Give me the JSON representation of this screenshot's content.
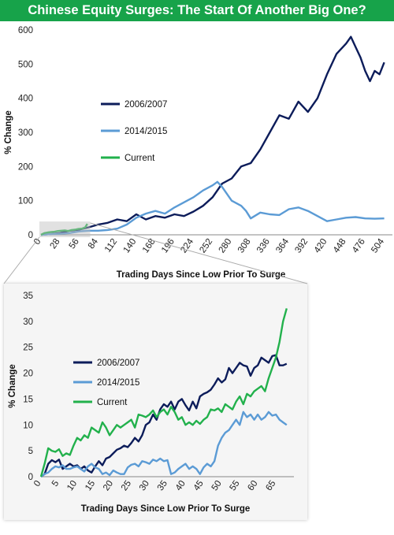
{
  "title": "Chinese Equity Surges: The Start Of Another Big One?",
  "colors": {
    "title_bar": "#17a34a",
    "series_2006": "#0c1c5a",
    "series_2014": "#5b9bd5",
    "series_current": "#22b14c",
    "inset_bg": "#f5f5f5"
  },
  "chart_data": [
    {
      "type": "line",
      "ylabel": "% Change",
      "xlabel": "Trading Days Since Low Prior To Surge",
      "xlim": [
        0,
        516
      ],
      "ylim": [
        0,
        600
      ],
      "x_ticks": [
        0,
        28,
        56,
        84,
        112,
        140,
        168,
        196,
        224,
        252,
        280,
        308,
        336,
        364,
        392,
        420,
        448,
        476,
        504
      ],
      "y_ticks": [
        0,
        100,
        200,
        300,
        400,
        500,
        600
      ],
      "legend": [
        "2006/2007",
        "2014/2015",
        "Current"
      ],
      "legend_position": "center-left",
      "series": [
        {
          "name": "2006/2007",
          "x": [
            0,
            14,
            28,
            42,
            56,
            70,
            84,
            98,
            112,
            126,
            140,
            154,
            168,
            182,
            196,
            210,
            224,
            238,
            252,
            266,
            280,
            294,
            308,
            322,
            336,
            350,
            364,
            378,
            392,
            406,
            420,
            434,
            448,
            455,
            462,
            469,
            476,
            483,
            490,
            497,
            504
          ],
          "y": [
            0,
            2,
            5,
            12,
            15,
            22,
            30,
            35,
            45,
            40,
            60,
            45,
            55,
            50,
            60,
            55,
            68,
            85,
            110,
            150,
            165,
            200,
            210,
            250,
            300,
            350,
            340,
            390,
            360,
            400,
            470,
            530,
            560,
            580,
            550,
            520,
            480,
            450,
            480,
            470,
            505
          ]
        },
        {
          "name": "2014/2015",
          "x": [
            0,
            14,
            28,
            42,
            56,
            70,
            84,
            98,
            112,
            126,
            140,
            154,
            168,
            182,
            196,
            210,
            224,
            238,
            252,
            259,
            266,
            280,
            294,
            301,
            308,
            322,
            336,
            350,
            364,
            378,
            392,
            406,
            420,
            434,
            448,
            462,
            476,
            490,
            504
          ],
          "y": [
            0,
            2,
            3,
            5,
            10,
            12,
            12,
            14,
            18,
            30,
            50,
            62,
            70,
            62,
            80,
            95,
            110,
            130,
            145,
            155,
            140,
            100,
            85,
            70,
            48,
            65,
            60,
            58,
            75,
            80,
            70,
            55,
            40,
            45,
            50,
            52,
            48,
            47,
            48
          ]
        },
        {
          "name": "Current",
          "x": [
            0,
            5,
            10,
            15,
            20,
            25,
            30,
            35,
            40,
            45,
            50,
            55,
            60,
            65,
            68
          ],
          "y": [
            0,
            5,
            7,
            8,
            9,
            11,
            12,
            13,
            11,
            14,
            15,
            17,
            18,
            22,
            32
          ]
        }
      ]
    },
    {
      "type": "line",
      "ylabel": "% Change",
      "xlabel": "Trading Days Since Low Prior To Surge",
      "xlim": [
        0,
        70
      ],
      "ylim": [
        0,
        35
      ],
      "x_ticks": [
        0,
        5,
        10,
        15,
        20,
        25,
        30,
        35,
        40,
        45,
        50,
        55,
        60,
        65
      ],
      "y_ticks": [
        0,
        5,
        10,
        15,
        20,
        25,
        30,
        35
      ],
      "legend": [
        "2006/2007",
        "2014/2015",
        "Current"
      ],
      "legend_position": "center-left",
      "series": [
        {
          "name": "2006/2007",
          "x": [
            0,
            1,
            2,
            3,
            4,
            5,
            6,
            7,
            8,
            9,
            10,
            11,
            12,
            13,
            14,
            15,
            16,
            17,
            18,
            19,
            20,
            21,
            22,
            23,
            24,
            25,
            26,
            27,
            28,
            29,
            30,
            31,
            32,
            33,
            34,
            35,
            36,
            37,
            38,
            39,
            40,
            41,
            42,
            43,
            44,
            45,
            46,
            47,
            48,
            49,
            50,
            51,
            52,
            53,
            54,
            55,
            56,
            57,
            58,
            59,
            60,
            61,
            62,
            63,
            64,
            65,
            66,
            67,
            68
          ],
          "y": [
            0,
            0.5,
            2.5,
            3.2,
            2.8,
            3.3,
            1.5,
            2.0,
            2.5,
            2.0,
            2.2,
            1.5,
            2.0,
            1.2,
            0.8,
            2.0,
            3.0,
            2.2,
            3.5,
            3.8,
            4.5,
            5.2,
            5.5,
            6.0,
            5.7,
            6.5,
            7.5,
            6.8,
            8.0,
            10.0,
            10.5,
            12.0,
            11.0,
            13.0,
            14.0,
            13.5,
            14.5,
            13.0,
            14.5,
            15.0,
            13.8,
            12.8,
            14.5,
            13.2,
            15.5,
            16.0,
            16.3,
            16.8,
            17.8,
            19.0,
            18.2,
            18.8,
            21.0,
            20.0,
            21.0,
            22.0,
            21.5,
            21.3,
            19.5,
            21.0,
            21.5,
            23.0,
            22.5,
            22.0,
            23.3,
            23.5,
            21.5,
            21.5,
            21.8
          ]
        },
        {
          "name": "2014/2015",
          "x": [
            0,
            1,
            2,
            3,
            4,
            5,
            6,
            7,
            8,
            9,
            10,
            11,
            12,
            13,
            14,
            15,
            16,
            17,
            18,
            19,
            20,
            21,
            22,
            23,
            24,
            25,
            26,
            27,
            28,
            29,
            30,
            31,
            32,
            33,
            34,
            35,
            36,
            37,
            38,
            39,
            40,
            41,
            42,
            43,
            44,
            45,
            46,
            47,
            48,
            49,
            50,
            51,
            52,
            53,
            54,
            55,
            56,
            57,
            58,
            59,
            60,
            61,
            62,
            63,
            64,
            65,
            66,
            67,
            68
          ],
          "y": [
            0,
            0.5,
            0.8,
            1.5,
            2.0,
            1.8,
            2.2,
            1.5,
            1.5,
            1.8,
            2.0,
            1.5,
            1.0,
            2.0,
            2.5,
            1.8,
            1.5,
            0.5,
            0.8,
            0.3,
            1.2,
            0.8,
            0.5,
            0.5,
            1.8,
            2.3,
            2.5,
            2.0,
            3.0,
            2.8,
            2.5,
            3.3,
            3.0,
            3.5,
            3.0,
            3.2,
            0.5,
            0.8,
            1.5,
            2.0,
            2.5,
            1.5,
            2.0,
            1.5,
            0.5,
            1.8,
            2.5,
            2.0,
            3.0,
            6.0,
            7.5,
            8.5,
            9.0,
            10.0,
            11.0,
            10.0,
            12.5,
            11.5,
            12.0,
            11.0,
            12.0,
            11.0,
            11.5,
            12.5,
            11.8,
            12.0,
            11.0,
            10.5,
            10.0
          ]
        },
        {
          "name": "Current",
          "x": [
            0,
            1,
            2,
            3,
            4,
            5,
            6,
            7,
            8,
            9,
            10,
            11,
            12,
            13,
            14,
            15,
            16,
            17,
            18,
            19,
            20,
            21,
            22,
            23,
            24,
            25,
            26,
            27,
            28,
            29,
            30,
            31,
            32,
            33,
            34,
            35,
            36,
            37,
            38,
            39,
            40,
            41,
            42,
            43,
            44,
            45,
            46,
            47,
            48,
            49,
            50,
            51,
            52,
            53,
            54,
            55,
            56,
            57,
            58,
            59,
            60,
            61,
            62,
            63,
            64,
            65,
            66,
            67,
            68
          ],
          "y": [
            0,
            2.5,
            5.5,
            5.0,
            4.8,
            5.3,
            4.0,
            4.5,
            4.2,
            6.0,
            7.5,
            7.0,
            8.0,
            7.5,
            9.5,
            9.0,
            8.5,
            10.5,
            9.5,
            8.0,
            9.0,
            10.0,
            9.5,
            10.0,
            10.5,
            11.0,
            9.5,
            12.0,
            11.8,
            11.5,
            12.0,
            12.8,
            11.5,
            12.5,
            13.0,
            12.0,
            13.5,
            12.5,
            11.0,
            11.5,
            10.0,
            10.5,
            10.0,
            10.8,
            10.2,
            11.0,
            11.5,
            13.0,
            12.8,
            13.2,
            12.5,
            14.0,
            13.5,
            13.0,
            14.5,
            15.5,
            14.0,
            16.0,
            15.5,
            16.5,
            17.0,
            17.5,
            16.5,
            19.0,
            21.0,
            23.0,
            26.0,
            30.0,
            32.5
          ]
        }
      ]
    }
  ]
}
